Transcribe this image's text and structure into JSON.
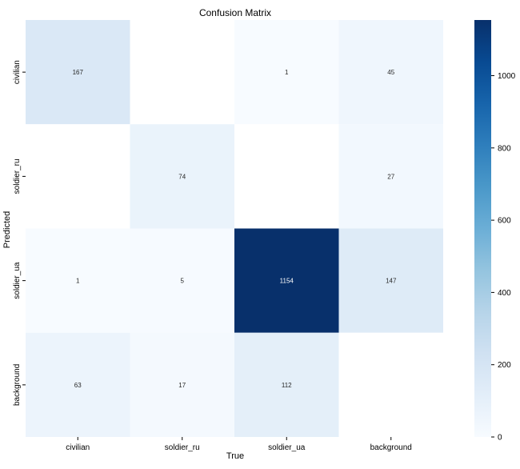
{
  "chart_data": {
    "type": "heatmap",
    "title": "Confusion Matrix",
    "xlabel": "True",
    "ylabel": "Predicted",
    "x_categories": [
      "civilian",
      "soldier_ru",
      "soldier_ua",
      "background"
    ],
    "y_categories": [
      "civilian",
      "soldier_ru",
      "soldier_ua",
      "background"
    ],
    "values": [
      [
        167,
        null,
        1,
        45
      ],
      [
        null,
        74,
        null,
        27
      ],
      [
        1,
        5,
        1154,
        147
      ],
      [
        63,
        17,
        112,
        null
      ]
    ],
    "colorscale": "Blues",
    "color_range": [
      0,
      1154
    ],
    "colorbar_ticks": [
      0,
      200,
      400,
      600,
      800,
      1000
    ],
    "colorbar_tick_labels": [
      "0",
      "200",
      "400",
      "600",
      "800",
      "1000"
    ]
  }
}
